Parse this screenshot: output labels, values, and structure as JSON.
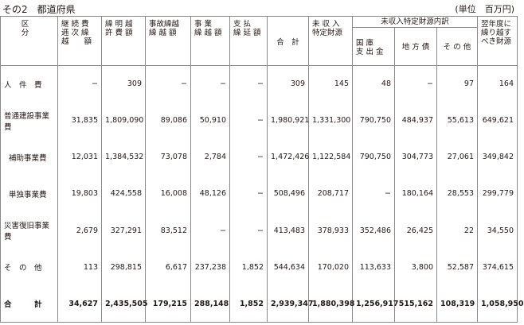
{
  "title": "その2　都道府県",
  "unit": "(単位　百万円)",
  "headers": {
    "kubun": "区　　分",
    "col1": "継 続 費\n逓 次 繰\n越　　額",
    "col2": "繰 明 越\n許 費 額",
    "col3": "事故繰越\n繰 越 額",
    "col4": "事 業\n繰 越 額",
    "col5": "支 払\n繰 延 額",
    "col6": "合　計",
    "col7": "未 収 入\n特定財源",
    "group": "未収入特定財源内訳",
    "sub1": "国 庫\n支 出 金",
    "sub2": "地 方 債",
    "sub3": "そ の 他",
    "col8": "翌年度に\n繰り越す\nべき財源"
  },
  "rows": [
    {
      "label": "人　件　費",
      "cells": [
        "−",
        "309",
        "−",
        "−",
        "−",
        "309",
        "145",
        "48",
        "−",
        "97",
        "164"
      ]
    },
    {
      "label": "普通建設事業費",
      "cells": [
        "31,835",
        "1,809,090",
        "89,086",
        "50,910",
        "−",
        "1,980,921",
        "1,331,300",
        "790,750",
        "484,937",
        "55,613",
        "649,621"
      ]
    },
    {
      "label": "補助事業費",
      "cells": [
        "12,031",
        "1,384,532",
        "73,078",
        "2,784",
        "−",
        "1,472,426",
        "1,122,584",
        "790,750",
        "304,773",
        "27,061",
        "349,842"
      ]
    },
    {
      "label": "単独事業費",
      "cells": [
        "19,803",
        "424,558",
        "16,008",
        "48,126",
        "−",
        "508,496",
        "208,717",
        "−",
        "180,164",
        "28,553",
        "299,779"
      ]
    },
    {
      "label": "災害復旧事業費",
      "cells": [
        "2,679",
        "327,291",
        "83,512",
        "−",
        "−",
        "413,483",
        "378,933",
        "352,486",
        "26,425",
        "22",
        "34,550"
      ]
    },
    {
      "label": "そ　の　他",
      "cells": [
        "113",
        "298,815",
        "6,617",
        "237,238",
        "1,852",
        "544,634",
        "170,020",
        "113,633",
        "3,800",
        "52,587",
        "374,615"
      ]
    },
    {
      "label": "合　　　計",
      "cells": [
        "34,627",
        "2,435,505",
        "179,215",
        "288,148",
        "1,852",
        "2,939,347",
        "1,880,398",
        "1,256,917",
        "515,162",
        "108,319",
        "1,058,950"
      ]
    }
  ]
}
